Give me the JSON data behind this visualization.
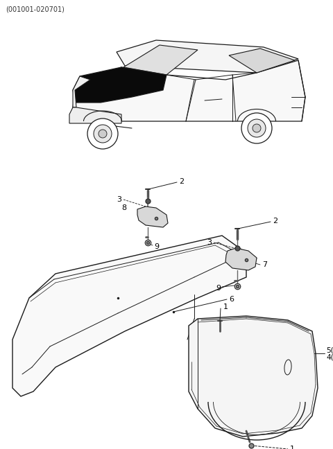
{
  "part_number_text": "(001001-020701)",
  "bg_color": "#ffffff",
  "line_color": "#1a1a1a",
  "fig_width": 4.8,
  "fig_height": 6.48,
  "dpi": 100
}
